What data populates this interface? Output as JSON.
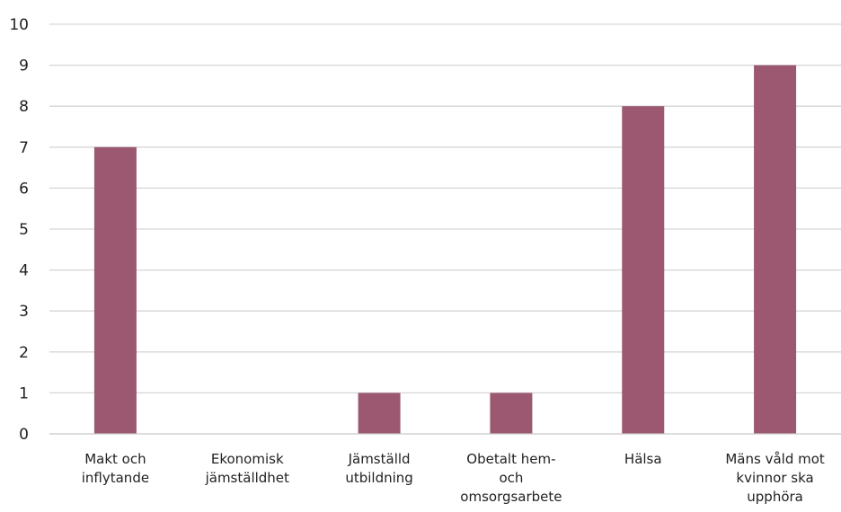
{
  "chart_data": {
    "type": "bar",
    "categories": [
      [
        "Makt och",
        "inflytande"
      ],
      [
        "Ekonomisk",
        "jämställdhet"
      ],
      [
        "Jämställd",
        "utbildning"
      ],
      [
        "Obetalt hem-",
        "och",
        "omsorgsarbete"
      ],
      [
        "Hälsa"
      ],
      [
        "Mäns våld mot",
        "kvinnor ska",
        "upphöra"
      ]
    ],
    "values": [
      7,
      0,
      1,
      1,
      8,
      9
    ],
    "ylim": [
      0,
      10
    ],
    "yticks": [
      0,
      1,
      2,
      3,
      4,
      5,
      6,
      7,
      8,
      9,
      10
    ],
    "grid": true,
    "bar_color": "#9b5870",
    "title": "",
    "xlabel": "",
    "ylabel": ""
  }
}
